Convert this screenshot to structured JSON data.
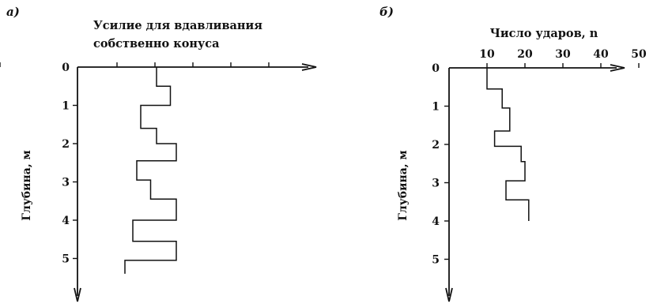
{
  "chart_data": [
    {
      "type": "line",
      "panel_label": "а)",
      "title_lines": [
        "Усилие для вдавливания",
        "собственно конуса"
      ],
      "ylabel": "Глубина, м",
      "y_ticks": [
        "0",
        "1",
        "2",
        "3",
        "4",
        "5"
      ],
      "ylim": [
        0,
        6
      ],
      "y_inverted": true,
      "x_ticks": [
        "",
        "",
        "",
        "",
        "",
        ""
      ],
      "xlim": [
        0,
        6
      ],
      "series": [
        {
          "x": [
            2.0,
            2.0,
            2.35,
            2.35,
            1.6,
            1.6,
            2.0,
            2.0,
            2.5,
            2.5,
            1.5,
            1.5,
            1.85,
            1.85,
            2.5,
            2.5,
            1.4,
            1.4,
            2.5,
            2.5,
            1.2,
            1.2
          ],
          "y": [
            0.0,
            0.5,
            0.5,
            1.0,
            1.0,
            1.6,
            1.6,
            2.0,
            2.0,
            2.45,
            2.45,
            2.95,
            2.95,
            3.45,
            3.45,
            4.0,
            4.0,
            4.55,
            4.55,
            5.05,
            5.05,
            5.4
          ]
        }
      ]
    },
    {
      "type": "line",
      "panel_label": "б)",
      "title_lines": [
        "Число ударов, n"
      ],
      "ylabel": "Глубина, м",
      "y_ticks": [
        "0",
        "1",
        "2",
        "3",
        "4",
        "5"
      ],
      "ylim": [
        0,
        6
      ],
      "y_inverted": true,
      "x_ticks": [
        "10",
        "20",
        "30",
        "40",
        "50"
      ],
      "xlim": [
        0,
        60
      ],
      "series": [
        {
          "x": [
            10,
            10,
            14,
            14,
            16,
            16,
            12,
            12,
            19,
            19,
            20,
            20,
            15,
            15,
            21,
            21
          ],
          "y": [
            0.0,
            0.55,
            0.55,
            1.05,
            1.05,
            1.65,
            1.65,
            2.05,
            2.05,
            2.45,
            2.45,
            2.95,
            2.95,
            3.45,
            3.45,
            4.0
          ]
        }
      ]
    }
  ]
}
